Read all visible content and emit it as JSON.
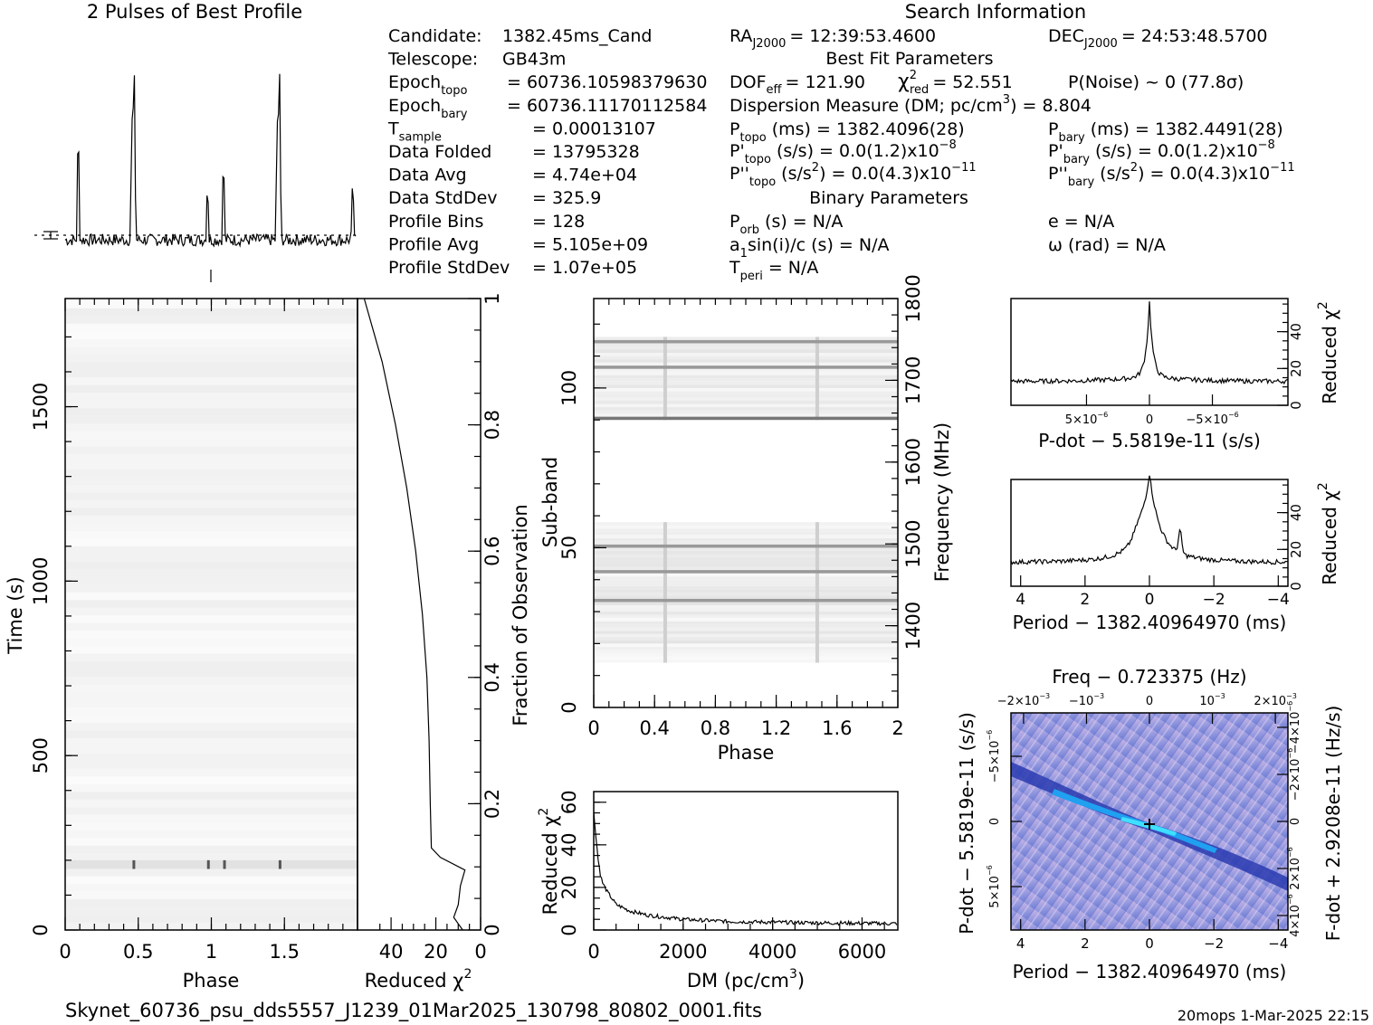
{
  "header": {
    "profile_title": "2 Pulses of Best Profile",
    "search_title": "Search Information",
    "footer_file": "Skynet_60736_psu_dds5557_J1239_01Mar2025_130798_80802_0001.fits",
    "footer_stamp": "20mops   1-Mar-2025 22:15"
  },
  "info_left": [
    {
      "label": "Candidate:",
      "value": "1382.45ms_Cand"
    },
    {
      "label": "Telescope:",
      "value": "GB43m"
    },
    {
      "label": "Epoch",
      "sub": "topo",
      "value": "= 60736.10598379630"
    },
    {
      "label": "Epoch",
      "sub": "bary",
      "value": "= 60736.11170112584"
    },
    {
      "label": "T",
      "sub": "sample",
      "value": "=   0.00013107"
    },
    {
      "label": "Data Folded",
      "value": "=   13795328"
    },
    {
      "label": "Data Avg",
      "value": "=   4.74e+04"
    },
    {
      "label": "Data StdDev",
      "value": "=   325.9"
    },
    {
      "label": "Profile Bins",
      "value": "=   128"
    },
    {
      "label": "Profile Avg",
      "value": "=   5.105e+09"
    },
    {
      "label": "Profile StdDev",
      "value": "=   1.07e+05"
    }
  ],
  "info_mid": {
    "ra": {
      "label": "RA",
      "sub": "J2000",
      "value": "= 12:39:53.4600"
    },
    "dec": {
      "label": "DEC",
      "sub": "J2000",
      "value": "= 24:53:48.5700"
    },
    "best_fit_title": "Best Fit Parameters",
    "dof": "DOF",
    "dof_sub": "eff",
    "dof_value": "= 121.90",
    "chi_label": "χ",
    "chi_sup": "2",
    "chi_sub": "red",
    "chi_value": "= 52.551",
    "pnoise": "P(Noise) ~ 0    (77.8σ)",
    "dm_line": "Dispersion Measure (DM; pc/cm",
    "dm_sup": "3",
    "dm_value": ") = 8.804",
    "ptopo": {
      "label": "P",
      "sub": "topo",
      "value": "(ms)  =   1382.4096(28)"
    },
    "pbary": {
      "label": "P",
      "sub": "bary",
      "value": "(ms)  =   1382.4491(28)"
    },
    "pdtopo": {
      "label": "P'",
      "sub": "topo",
      "value": "(s/s) = 0.0(1.2)x10",
      "exp": "−8"
    },
    "pdbary": {
      "label": "P'",
      "sub": "bary",
      "value": "(s/s) = 0.0(1.2)x10",
      "exp": "−8"
    },
    "pddtopo": {
      "label": "P''",
      "sub": "topo",
      "value": "(s/s",
      "sup2": "2",
      "value2": ") = 0.0(4.3)x10",
      "exp": "−11"
    },
    "pddbary": {
      "label": "P''",
      "sub": "bary",
      "value": "(s/s",
      "sup2": "2",
      "value2": ") = 0.0(4.3)x10",
      "exp": "−11"
    },
    "binary_title": "Binary Parameters",
    "porb": {
      "label": "P",
      "sub": "orb",
      "value": "(s) = N/A"
    },
    "ecc": "e = N/A",
    "asini": {
      "label": "a",
      "sub": "1",
      "value": "sin(i)/c (s) = N/A"
    },
    "omega": "ω (rad) = N/A",
    "tperi": {
      "label": "T",
      "sub": "peri",
      "value": "= N/A"
    }
  },
  "chart_data": [
    {
      "id": "profile",
      "type": "line",
      "title": "2 Pulses of Best Profile",
      "phase_range": [
        0,
        2
      ],
      "peaks": [
        {
          "phase": 0.09,
          "height": 0.62
        },
        {
          "phase": 0.46,
          "height": 0.64
        },
        {
          "phase": 0.475,
          "height": 0.95
        },
        {
          "phase": 0.98,
          "height": 0.32
        },
        {
          "phase": 1.09,
          "height": 0.45
        },
        {
          "phase": 1.46,
          "height": 0.62
        },
        {
          "phase": 1.475,
          "height": 0.95
        },
        {
          "phase": 1.98,
          "height": 0.32
        }
      ]
    },
    {
      "id": "time_phase",
      "type": "heatmap",
      "xlabel": "Phase",
      "ylabel": "Time (s)",
      "xlim": [
        0,
        2
      ],
      "ylim": [
        0,
        1810
      ],
      "xticks": [
        "0",
        "0.5",
        "1",
        "1.5"
      ],
      "xtick_values": [
        0,
        0.5,
        1,
        1.5
      ],
      "yticks": [
        "0",
        "500",
        "1000",
        "1500"
      ],
      "ytick_values": [
        0,
        500,
        1000,
        1500
      ]
    },
    {
      "id": "time_chi2",
      "type": "line",
      "xlabel": "Reduced χ",
      "xlabel_sup": "2",
      "ylabel": "Fraction of Observation",
      "xlim": [
        55,
        0
      ],
      "ylim": [
        0,
        1
      ],
      "xticks": [
        "40",
        "20",
        "0"
      ],
      "xtick_values": [
        40,
        20,
        0
      ],
      "yticks": [
        "0",
        "0.2",
        "0.4",
        "0.6",
        "0.8",
        "1"
      ],
      "ytick_values": [
        0,
        0.2,
        0.4,
        0.6,
        0.8,
        1
      ],
      "points": [
        [
          0.0,
          8
        ],
        [
          0.02,
          12
        ],
        [
          0.04,
          10
        ],
        [
          0.07,
          9
        ],
        [
          0.095,
          7
        ],
        [
          0.115,
          18
        ],
        [
          0.13,
          22
        ],
        [
          0.2,
          22.5
        ],
        [
          0.3,
          23
        ],
        [
          0.4,
          24
        ],
        [
          0.5,
          26
        ],
        [
          0.6,
          29
        ],
        [
          0.7,
          33
        ],
        [
          0.8,
          38
        ],
        [
          0.9,
          44
        ],
        [
          0.95,
          48
        ],
        [
          1.0,
          52
        ]
      ]
    },
    {
      "id": "subband_phase",
      "type": "heatmap",
      "xlabel": "Phase",
      "ylabel": "Sub-band",
      "y2label": "Frequency (MHz)",
      "xlim": [
        0,
        2
      ],
      "ylim": [
        0,
        128
      ],
      "y2lim": [
        1300,
        1800
      ],
      "xticks": [
        "0",
        "0.4",
        "0.8",
        "1.2",
        "1.6",
        "2"
      ],
      "xtick_values": [
        0,
        0.4,
        0.8,
        1.2,
        1.6,
        2
      ],
      "yticks": [
        "0",
        "50",
        "100"
      ],
      "ytick_values": [
        0,
        50,
        100
      ],
      "y2ticks": [
        "1400",
        "1500",
        "1600",
        "1700",
        "1800"
      ],
      "y2tick_values": [
        1400,
        1500,
        1600,
        1700,
        1800
      ],
      "bands": [
        [
          14,
          58
        ],
        [
          90,
          116
        ]
      ],
      "dark_rows": [
        33,
        42,
        50,
        90,
        106,
        114
      ]
    },
    {
      "id": "dm_chi2",
      "type": "line",
      "xlabel": "DM (pc/cm",
      "xlabel_sup": "3",
      "xlabel_end": ")",
      "ylabel": "Reduced χ",
      "ylabel_sup": "2",
      "xlim": [
        0,
        6800
      ],
      "ylim": [
        0,
        65
      ],
      "xticks": [
        "0",
        "2000",
        "4000",
        "6000"
      ],
      "xtick_values": [
        0,
        2000,
        4000,
        6000
      ],
      "yticks": [
        "0",
        "20",
        "40",
        "60"
      ],
      "ytick_values": [
        0,
        20,
        40,
        60
      ],
      "points": [
        [
          0,
          55
        ],
        [
          50,
          44
        ],
        [
          100,
          33
        ],
        [
          150,
          26
        ],
        [
          200,
          22
        ],
        [
          300,
          18
        ],
        [
          500,
          12
        ],
        [
          800,
          9
        ],
        [
          1200,
          7
        ],
        [
          2000,
          5
        ],
        [
          3000,
          4
        ],
        [
          4500,
          3.5
        ],
        [
          6800,
          3
        ]
      ]
    },
    {
      "id": "pdot_chi2",
      "type": "line",
      "xlabel": "P-dot − 5.5819e-11 (s/s)",
      "ylabel": "Reduced χ",
      "ylabel_sup": "2",
      "xlim": [
        1.1e-05,
        -1.1e-05
      ],
      "ylim": [
        0,
        58
      ],
      "xticks": [
        "5×10",
        "0",
        "−5×10"
      ],
      "xtick_exps": [
        "−6",
        "",
        "−6"
      ],
      "xtick_values": [
        5e-06,
        0,
        -5e-06
      ],
      "yticks": [
        "0",
        "20",
        "40"
      ],
      "ytick_values": [
        0,
        20,
        40
      ],
      "baseline": 13,
      "peak_value": 53
    },
    {
      "id": "period_chi2",
      "type": "line",
      "xlabel": "Period − 1382.40964970 (ms)",
      "ylabel": "Reduced χ",
      "ylabel_sup": "2",
      "xlim": [
        4.3,
        -4.3
      ],
      "ylim": [
        0,
        58
      ],
      "xticks": [
        "4",
        "2",
        "0",
        "−2",
        "−4"
      ],
      "xtick_values": [
        4,
        2,
        0,
        -2,
        -4
      ],
      "yticks": [
        "0",
        "20",
        "40"
      ],
      "ytick_values": [
        0,
        20,
        40
      ],
      "baseline": 13,
      "peak_value": 53
    },
    {
      "id": "ppdot_plane",
      "type": "heatmap",
      "title": "Freq − 0.723375 (Hz)",
      "xlabel": "Period − 1382.40964970 (ms)",
      "ylabel": "P-dot − 5.5819e-11 (s/s)",
      "y2label": "F-dot + 2.9208e-11 (Hz/s)",
      "xlim": [
        4.3,
        -4.3
      ],
      "xticks": [
        "4",
        "2",
        "0",
        "−2",
        "−4"
      ],
      "xtick_values": [
        4,
        2,
        0,
        -2,
        -4
      ],
      "topticks": [
        "−2×10",
        "−10",
        "0",
        "10",
        "2×10"
      ],
      "topexps": [
        "−3",
        "−3",
        "",
        "−3",
        "−3"
      ],
      "yticks": [
        "−5×10",
        "0",
        "5×10"
      ],
      "yexps": [
        "−6",
        "",
        "−6"
      ],
      "y2ticks": [
        "−4×10",
        "−2×10",
        "0",
        "2×10",
        "4×10"
      ],
      "y2exps": [
        "−6",
        "−6",
        "",
        "−6",
        "−6"
      ]
    }
  ]
}
